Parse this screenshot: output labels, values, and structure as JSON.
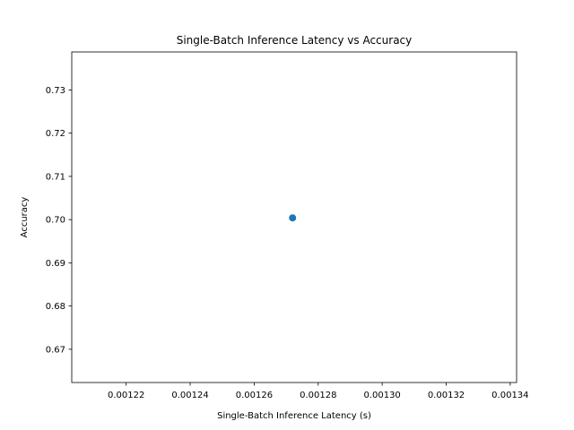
{
  "chart_data": {
    "type": "scatter",
    "title": "Single-Batch Inference Latency vs Accuracy",
    "xlabel": "Single-Batch Inference Latency (s)",
    "ylabel": "Accuracy",
    "xlim": [
      0.001203,
      0.001342
    ],
    "ylim": [
      0.6623,
      0.7388
    ],
    "xticks": [
      0.00122,
      0.00124,
      0.00126,
      0.00128,
      0.0013,
      0.00132,
      0.00134
    ],
    "xtick_labels": [
      "0.00122",
      "0.00124",
      "0.00126",
      "0.00128",
      "0.00130",
      "0.00132",
      "0.00134"
    ],
    "yticks": [
      0.67,
      0.68,
      0.69,
      0.7,
      0.71,
      0.72,
      0.73
    ],
    "ytick_labels": [
      "0.67",
      "0.68",
      "0.69",
      "0.70",
      "0.71",
      "0.72",
      "0.73"
    ],
    "grid": false,
    "points": [
      {
        "x": 0.001272,
        "y": 0.7004
      }
    ],
    "colors": {
      "marker": "#1f77b4",
      "axes": "#000000",
      "background": "#ffffff"
    }
  }
}
